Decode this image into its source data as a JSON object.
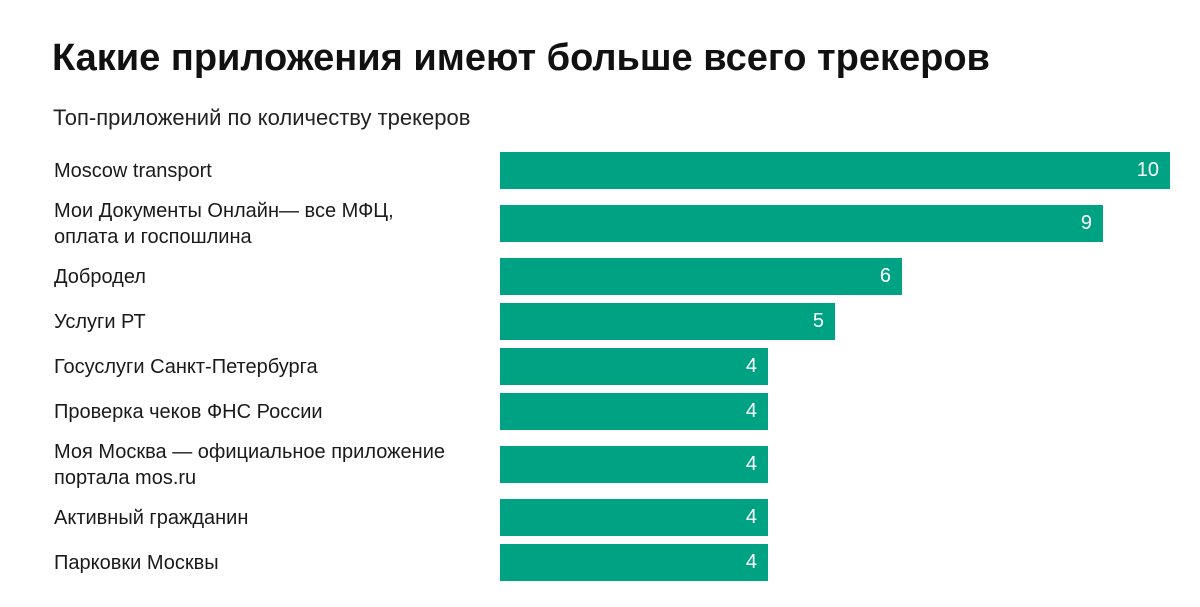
{
  "chart_data": {
    "type": "bar",
    "orientation": "horizontal",
    "title": "Какие приложения имеют больше всего трекеров",
    "subtitle": "Топ-приложений по количеству трекеров",
    "categories": [
      "Moscow transport",
      "Мои Документы Онлайн— все МФЦ,\nоплата и госпошлина",
      "Добродел",
      "Услуги РТ",
      "Госуслуги Санкт-Петербурга",
      "Проверка чеков ФНС России",
      "Моя Москва — официальное приложение\nпортала mos.ru",
      "Активный гражданин",
      "Парковки Москвы"
    ],
    "values": [
      10,
      9,
      6,
      5,
      4,
      4,
      4,
      4,
      4
    ],
    "xlim": [
      0,
      10
    ],
    "data_labels": true,
    "grid": false,
    "legend": "none",
    "bar_color": "#00a284"
  }
}
